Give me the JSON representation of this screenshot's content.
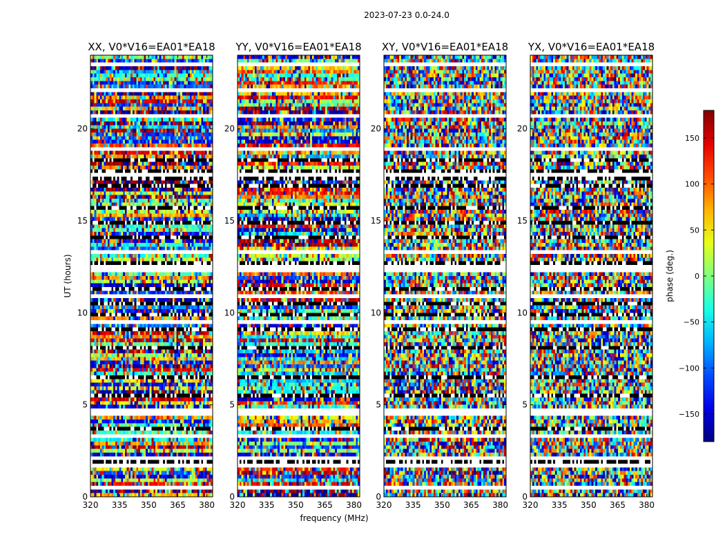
{
  "chart_data": {
    "type": "heatmap",
    "suptitle": "2023-07-23 0.0-24.0",
    "panels": [
      {
        "title": "XX, V0*V16=EA01*EA18",
        "seed": 11,
        "coherence": 0.55
      },
      {
        "title": "YY, V0*V16=EA01*EA18",
        "seed": 23,
        "coherence": 0.55
      },
      {
        "title": "XY, V0*V16=EA01*EA18",
        "seed": 37,
        "coherence": 0.15
      },
      {
        "title": "YX, V0*V16=EA01*EA18",
        "seed": 41,
        "coherence": 0.15
      }
    ],
    "xlabel": "frequency (MHz)",
    "ylabel": "UT (hours)",
    "xlim": [
      320,
      383
    ],
    "ylim": [
      0,
      24
    ],
    "xticks": [
      320,
      335,
      350,
      365,
      380
    ],
    "xtick_labels": [
      "320",
      "335",
      "350",
      "365",
      "380"
    ],
    "yticks": [
      0,
      5,
      10,
      15,
      20
    ],
    "ytick_labels": [
      "0",
      "5",
      "10",
      "15",
      "20"
    ],
    "n_channels": 64,
    "n_times": 120,
    "flagged_blank_hours": [
      0.45,
      1.75,
      2.05,
      3.3,
      4.6,
      6.0,
      7.2,
      9.5,
      10.9,
      12.4,
      13.3,
      16.0,
      17.5,
      18.9,
      20.6,
      22.2,
      23.5
    ],
    "flagged_black_hours": [
      1.95,
      3.75,
      5.55,
      6.55,
      8.05,
      9.15,
      9.95,
      10.55,
      11.35,
      12.75,
      14.15,
      14.85,
      15.65,
      16.95,
      17.35,
      17.75,
      18.25
    ],
    "colorbar": {
      "label": "phase (deg.)",
      "range": [
        -180,
        180
      ],
      "ticks": [
        150,
        100,
        50,
        0,
        -50,
        -100,
        -150
      ],
      "tick_labels": [
        "150",
        "100",
        "50",
        "0",
        "−50",
        "−100",
        "−150"
      ],
      "colormap": "jet"
    }
  }
}
